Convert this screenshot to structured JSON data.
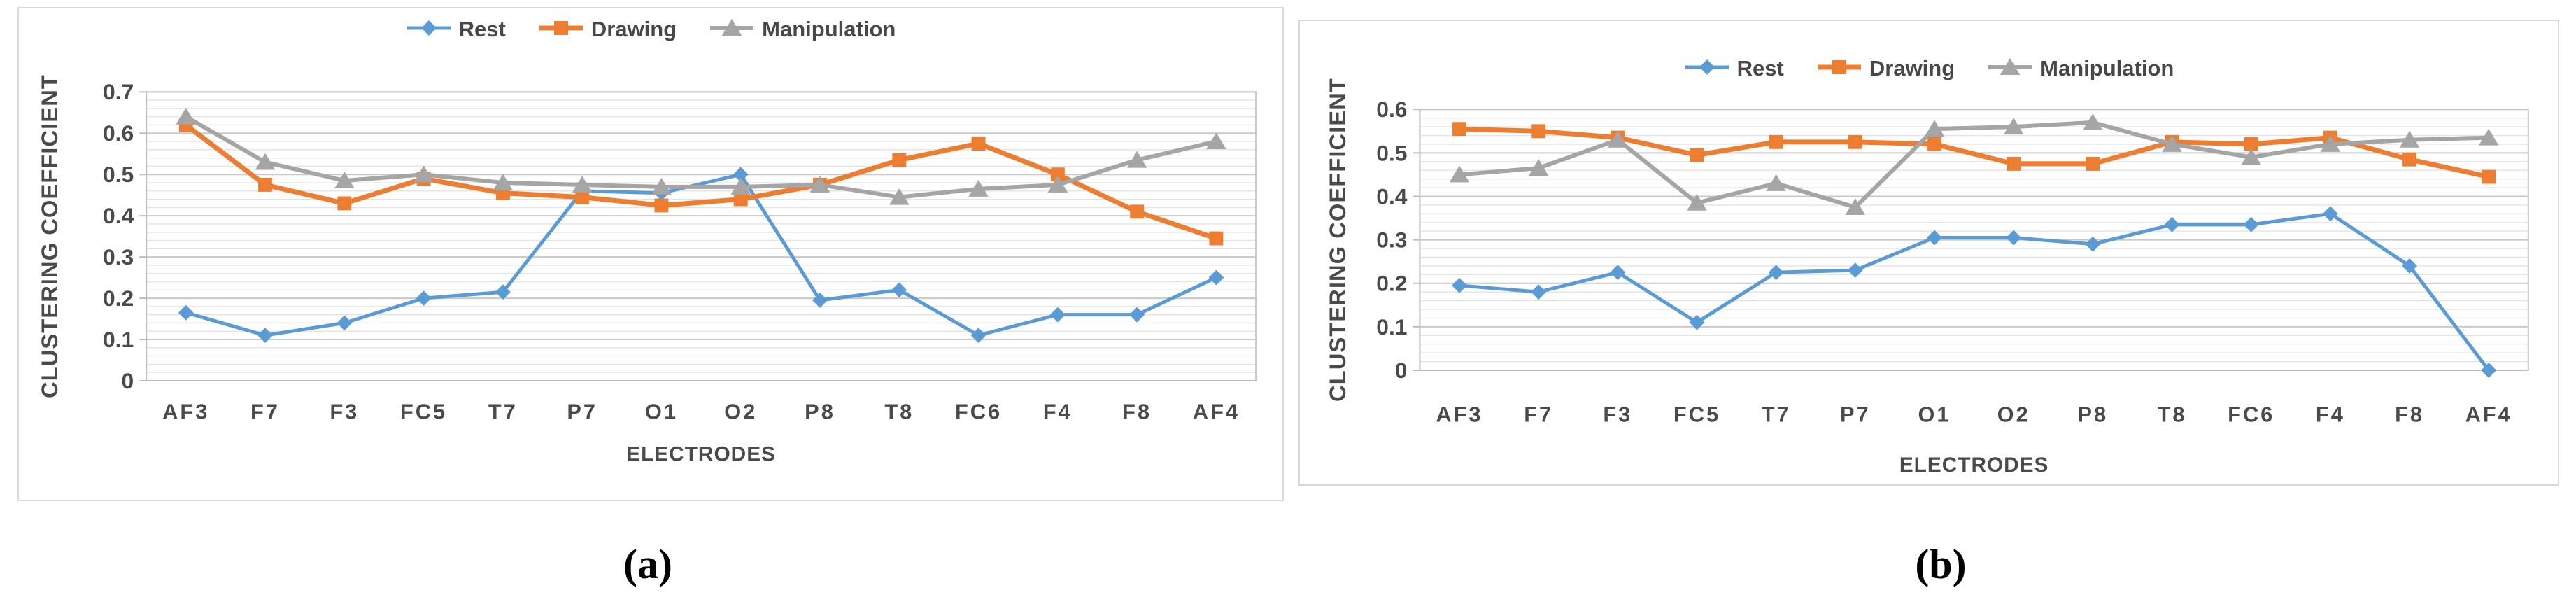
{
  "figure": {
    "captions": {
      "a": "(a)",
      "b": "(b)"
    }
  },
  "colors": {
    "rest": "#5B9BD5",
    "drawing": "#ED7D31",
    "manipulation": "#A5A5A5",
    "axis_text": "#4a4a4a",
    "grid_minor": "#e3e3e3",
    "grid_major": "#c8c8c8",
    "axis_line": "#bdbdbd",
    "panel_border": "#d9d9d9"
  },
  "chart_data": [
    {
      "panel": "a",
      "type": "line",
      "title": "",
      "xlabel": "ELECTRODES",
      "ylabel": "CLUSTERING COEFFICIENT",
      "ylim": [
        0,
        0.7
      ],
      "ytick_step": 0.1,
      "minor_grid_step": 0.02,
      "grid": true,
      "legend_position": "top",
      "categories": [
        "AF3",
        "F7",
        "F3",
        "FC5",
        "T7",
        "P7",
        "O1",
        "O2",
        "P8",
        "T8",
        "FC6",
        "F4",
        "F8",
        "AF4"
      ],
      "series": [
        {
          "name": "Rest",
          "marker": "diamond",
          "color": "#5B9BD5",
          "values": [
            0.165,
            0.11,
            0.14,
            0.2,
            0.215,
            0.46,
            0.455,
            0.5,
            0.195,
            0.22,
            0.11,
            0.16,
            0.16,
            0.25
          ]
        },
        {
          "name": "Drawing",
          "marker": "square",
          "color": "#ED7D31",
          "values": [
            0.62,
            0.475,
            0.43,
            0.49,
            0.455,
            0.445,
            0.425,
            0.44,
            0.475,
            0.535,
            0.575,
            0.5,
            0.41,
            0.345
          ]
        },
        {
          "name": "Manipulation",
          "marker": "triangle",
          "color": "#A5A5A5",
          "values": [
            0.64,
            0.53,
            0.485,
            0.5,
            0.48,
            0.475,
            0.47,
            0.47,
            0.475,
            0.445,
            0.465,
            0.475,
            0.535,
            0.58
          ]
        }
      ]
    },
    {
      "panel": "b",
      "type": "line",
      "title": "",
      "xlabel": "ELECTRODES",
      "ylabel": "CLUSTERING COEFFICIENT",
      "ylim": [
        0,
        0.6
      ],
      "ytick_step": 0.1,
      "minor_grid_step": 0.02,
      "grid": true,
      "legend_position": "top",
      "categories": [
        "AF3",
        "F7",
        "F3",
        "FC5",
        "T7",
        "P7",
        "O1",
        "O2",
        "P8",
        "T8",
        "FC6",
        "F4",
        "F8",
        "AF4"
      ],
      "series": [
        {
          "name": "Rest",
          "marker": "diamond",
          "color": "#5B9BD5",
          "values": [
            0.195,
            0.18,
            0.225,
            0.11,
            0.225,
            0.23,
            0.305,
            0.305,
            0.29,
            0.335,
            0.335,
            0.36,
            0.24,
            0
          ]
        },
        {
          "name": "Drawing",
          "marker": "square",
          "color": "#ED7D31",
          "values": [
            0.555,
            0.55,
            0.535,
            0.495,
            0.525,
            0.525,
            0.52,
            0.475,
            0.475,
            0.525,
            0.52,
            0.535,
            0.485,
            0.445
          ]
        },
        {
          "name": "Manipulation",
          "marker": "triangle",
          "color": "#A5A5A5",
          "values": [
            0.45,
            0.465,
            0.53,
            0.385,
            0.43,
            0.375,
            0.555,
            0.56,
            0.57,
            0.52,
            0.49,
            0.52,
            0.53,
            0.535
          ]
        }
      ]
    }
  ]
}
